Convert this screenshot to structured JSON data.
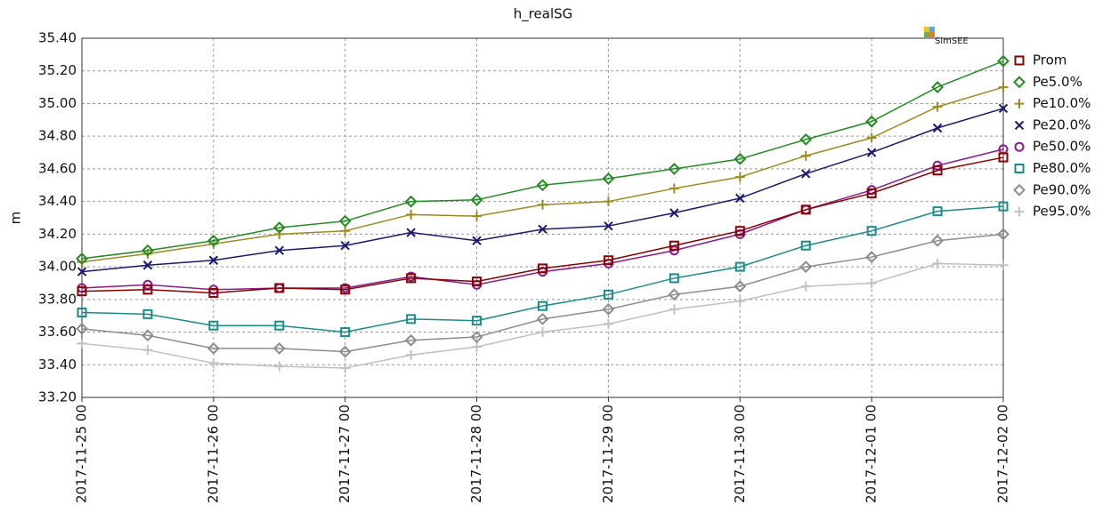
{
  "chart_data": {
    "type": "line",
    "title": "h_realSG",
    "y_label": "m",
    "watermark": "SimSEE",
    "x": [
      "2017-11-25 00",
      "2017-11-25 12",
      "2017-11-26 00",
      "2017-11-26 12",
      "2017-11-27 00",
      "2017-11-27 12",
      "2017-11-28 00",
      "2017-11-28 12",
      "2017-11-29 00",
      "2017-11-29 12",
      "2017-11-30 00",
      "2017-11-30 12",
      "2017-12-01 00",
      "2017-12-01 12",
      "2017-12-02 00"
    ],
    "xlim": [
      "2017-11-25 00",
      "2017-12-02 00"
    ],
    "xticks": [
      "2017-11-25 00",
      "2017-11-26 00",
      "2017-11-27 00",
      "2017-11-28 00",
      "2017-11-29 00",
      "2017-11-30 00",
      "2017-12-01 00",
      "2017-12-02 00"
    ],
    "ylim": [
      33.2,
      35.4
    ],
    "yticks": [
      {
        "value": 33.2,
        "label": "33.20"
      },
      {
        "value": 33.4,
        "label": "33.40"
      },
      {
        "value": 33.6,
        "label": "33.60"
      },
      {
        "value": 33.8,
        "label": "33.80"
      },
      {
        "value": 34,
        "label": "34.00"
      },
      {
        "value": 34.2,
        "label": "34.20"
      },
      {
        "value": 34.4,
        "label": "34.40"
      },
      {
        "value": 34.6,
        "label": "34.60"
      },
      {
        "value": 34.8,
        "label": "34.80"
      },
      {
        "value": 35,
        "label": "35.00"
      },
      {
        "value": 35.2,
        "label": "35.20"
      },
      {
        "value": 35.4,
        "label": "35.40"
      }
    ],
    "grid": true,
    "legend": "right",
    "series": [
      {
        "name": "Prom",
        "color": "#8b0000",
        "marker": "square",
        "values": [
          33.85,
          33.86,
          33.84,
          33.87,
          33.86,
          33.93,
          33.91,
          33.99,
          34.04,
          34.13,
          34.22,
          34.35,
          34.45,
          34.59,
          34.67
        ]
      },
      {
        "name": "Pe5.0%",
        "color": "#228b22",
        "marker": "diamond",
        "values": [
          34.05,
          34.1,
          34.16,
          34.24,
          34.28,
          34.4,
          34.41,
          34.5,
          34.54,
          34.6,
          34.66,
          34.78,
          34.89,
          35.1,
          35.26
        ]
      },
      {
        "name": "Pe10.0%",
        "color": "#9c8b20",
        "marker": "plus",
        "values": [
          34.03,
          34.08,
          34.14,
          34.2,
          34.22,
          34.32,
          34.31,
          34.38,
          34.4,
          34.48,
          34.55,
          34.68,
          34.79,
          34.98,
          35.1
        ]
      },
      {
        "name": "Pe20.0%",
        "color": "#191970",
        "marker": "cross",
        "values": [
          33.97,
          34.01,
          34.04,
          34.1,
          34.13,
          34.21,
          34.16,
          34.23,
          34.25,
          34.33,
          34.42,
          34.57,
          34.7,
          34.85,
          34.97
        ]
      },
      {
        "name": "Pe50.0%",
        "color": "#8b1a8b",
        "marker": "circle",
        "values": [
          33.87,
          33.89,
          33.86,
          33.87,
          33.87,
          33.94,
          33.89,
          33.97,
          34.02,
          34.1,
          34.2,
          34.35,
          34.47,
          34.62,
          34.72
        ]
      },
      {
        "name": "Pe80.0%",
        "color": "#1a8b8b",
        "marker": "square",
        "values": [
          33.72,
          33.71,
          33.64,
          33.64,
          33.6,
          33.68,
          33.67,
          33.76,
          33.83,
          33.93,
          34.0,
          34.13,
          34.22,
          34.34,
          34.37
        ]
      },
      {
        "name": "Pe90.0%",
        "color": "#8c8c8c",
        "marker": "diamond",
        "values": [
          33.62,
          33.58,
          33.5,
          33.5,
          33.48,
          33.55,
          33.57,
          33.68,
          33.74,
          33.83,
          33.88,
          34.0,
          34.06,
          34.16,
          34.2
        ]
      },
      {
        "name": "Pe95.0%",
        "color": "#c0c0c0",
        "marker": "plus",
        "values": [
          33.53,
          33.49,
          33.41,
          33.39,
          33.38,
          33.46,
          33.51,
          33.6,
          33.65,
          33.74,
          33.79,
          33.88,
          33.9,
          34.02,
          34.01
        ]
      }
    ]
  }
}
